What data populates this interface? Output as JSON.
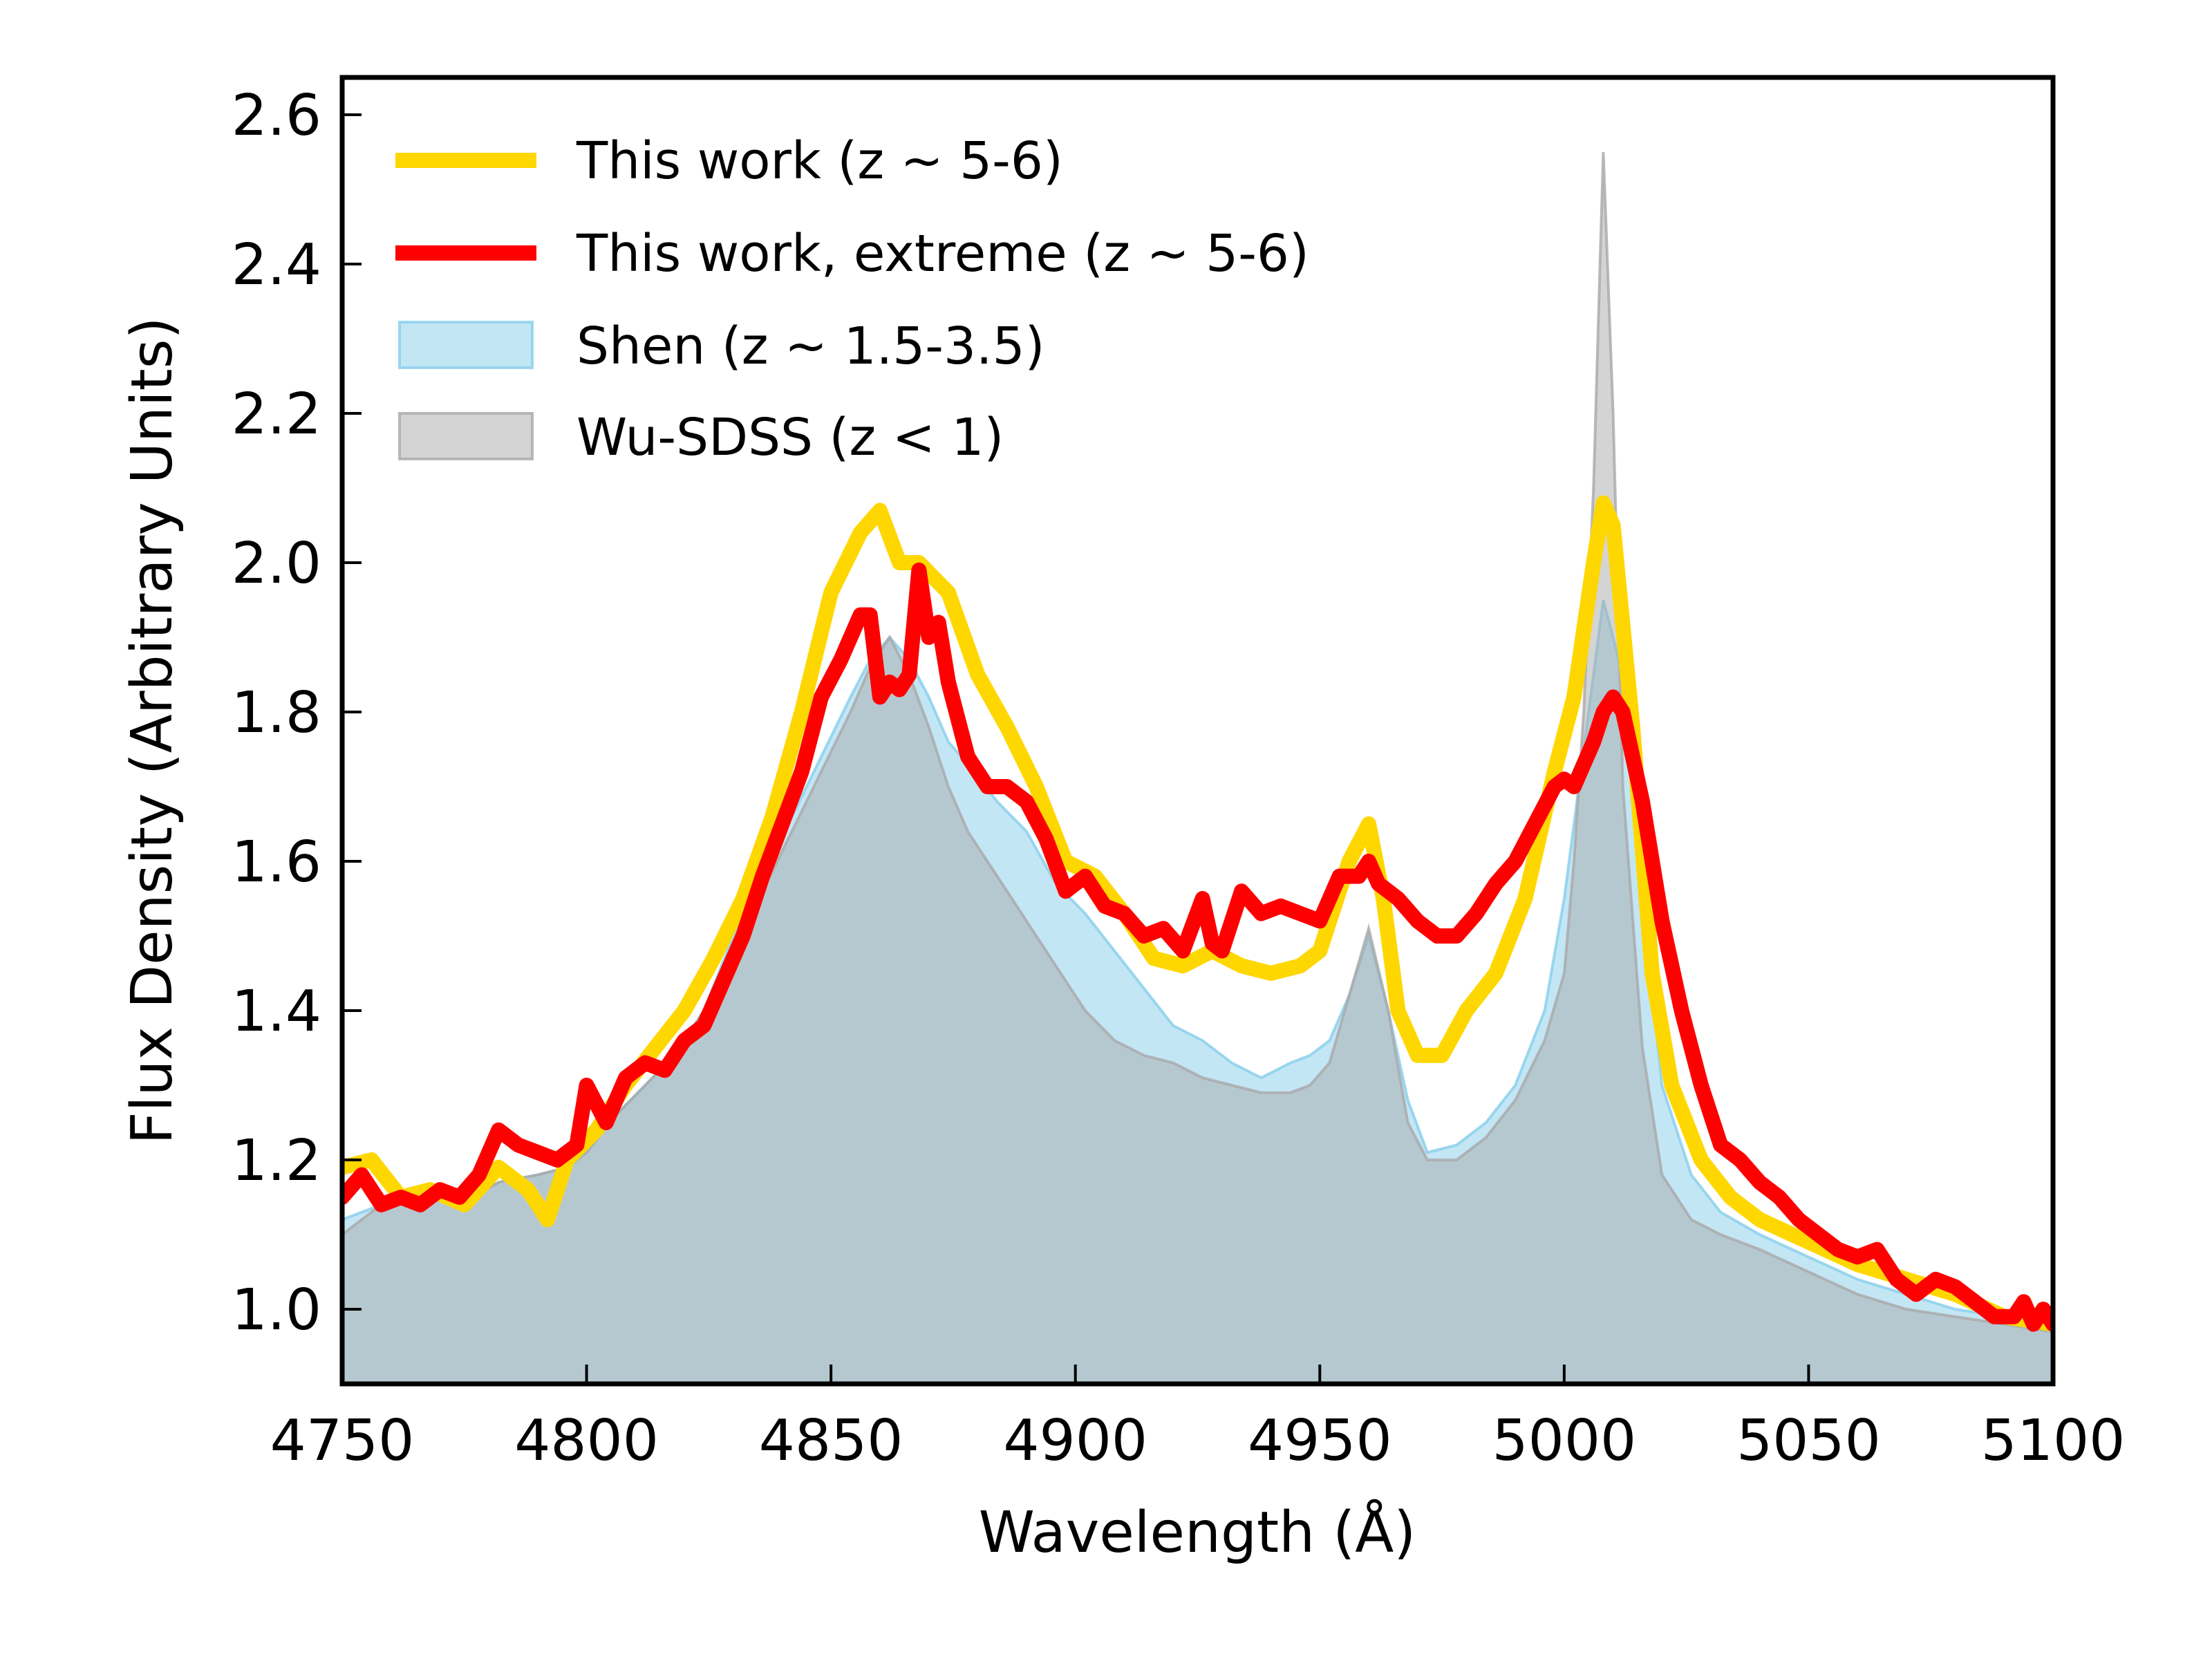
{
  "chart_data": {
    "type": "area",
    "title": "",
    "xlabel": "Wavelength (Å)",
    "ylabel": "Flux Density (Arbitrary Units)",
    "xlim": [
      4750,
      5100
    ],
    "ylim": [
      0.9,
      2.65
    ],
    "xticks": [
      4750,
      4800,
      4850,
      4900,
      4950,
      5000,
      5050,
      5100
    ],
    "yticks": [
      1.0,
      1.2,
      1.4,
      1.6,
      1.8,
      2.0,
      2.2,
      2.4,
      2.6
    ],
    "xtick_labels": [
      "4750",
      "4800",
      "4850",
      "4900",
      "4950",
      "5000",
      "5050",
      "5100"
    ],
    "ytick_labels": [
      "1.0",
      "1.2",
      "1.4",
      "1.6",
      "1.8",
      "2.0",
      "2.2",
      "2.4",
      "2.6"
    ],
    "grid": false,
    "legend_position": "top-left",
    "series": [
      {
        "name": "This work (z ~ 5-6)",
        "kind": "line",
        "color": "#FFD700",
        "x": [
          4750,
          4756,
          4762,
          4768,
          4775,
          4782,
          4788,
          4792,
          4796,
          4802,
          4808,
          4814,
          4820,
          4826,
          4832,
          4838,
          4844,
          4850,
          4856,
          4860,
          4864,
          4868,
          4874,
          4880,
          4886,
          4892,
          4898,
          4904,
          4910,
          4916,
          4922,
          4928,
          4934,
          4940,
          4946,
          4950,
          4956,
          4960,
          4963,
          4966,
          4970,
          4975,
          4980,
          4986,
          4992,
          4998,
          5002,
          5006,
          5008,
          5010,
          5014,
          5018,
          5022,
          5028,
          5034,
          5040,
          5050,
          5060,
          5070,
          5080,
          5090,
          5100
        ],
        "y": [
          1.19,
          1.2,
          1.15,
          1.16,
          1.14,
          1.19,
          1.16,
          1.12,
          1.2,
          1.24,
          1.3,
          1.35,
          1.4,
          1.47,
          1.55,
          1.66,
          1.8,
          1.96,
          2.04,
          2.07,
          2.0,
          2.0,
          1.96,
          1.85,
          1.78,
          1.7,
          1.6,
          1.58,
          1.53,
          1.47,
          1.46,
          1.48,
          1.46,
          1.45,
          1.46,
          1.48,
          1.6,
          1.65,
          1.55,
          1.4,
          1.34,
          1.34,
          1.4,
          1.45,
          1.55,
          1.72,
          1.82,
          2.0,
          2.08,
          2.05,
          1.78,
          1.45,
          1.3,
          1.2,
          1.15,
          1.12,
          1.09,
          1.06,
          1.04,
          1.02,
          0.99,
          0.98
        ]
      },
      {
        "name": "This work, extreme (z ~ 5-6)",
        "kind": "line",
        "color": "#FF0000",
        "x": [
          4750,
          4754,
          4758,
          4762,
          4766,
          4770,
          4774,
          4778,
          4782,
          4786,
          4790,
          4794,
          4798,
          4800,
          4804,
          4808,
          4812,
          4816,
          4820,
          4824,
          4828,
          4832,
          4836,
          4840,
          4844,
          4848,
          4852,
          4856,
          4858,
          4860,
          4862,
          4864,
          4866,
          4868,
          4870,
          4872,
          4874,
          4878,
          4882,
          4886,
          4890,
          4894,
          4898,
          4902,
          4906,
          4910,
          4914,
          4918,
          4922,
          4926,
          4928,
          4930,
          4934,
          4938,
          4942,
          4946,
          4950,
          4954,
          4958,
          4960,
          4962,
          4966,
          4970,
          4974,
          4978,
          4982,
          4986,
          4990,
          4994,
          4998,
          5000,
          5002,
          5006,
          5008,
          5010,
          5012,
          5016,
          5020,
          5024,
          5028,
          5032,
          5036,
          5040,
          5044,
          5048,
          5052,
          5056,
          5060,
          5064,
          5068,
          5072,
          5076,
          5080,
          5084,
          5088,
          5092,
          5094,
          5096,
          5098,
          5100
        ],
        "y": [
          1.15,
          1.18,
          1.14,
          1.15,
          1.14,
          1.16,
          1.15,
          1.18,
          1.24,
          1.22,
          1.21,
          1.2,
          1.22,
          1.3,
          1.25,
          1.31,
          1.33,
          1.32,
          1.36,
          1.38,
          1.44,
          1.5,
          1.58,
          1.65,
          1.72,
          1.82,
          1.87,
          1.93,
          1.93,
          1.82,
          1.84,
          1.83,
          1.85,
          1.99,
          1.9,
          1.92,
          1.84,
          1.74,
          1.7,
          1.7,
          1.68,
          1.63,
          1.56,
          1.58,
          1.54,
          1.53,
          1.5,
          1.51,
          1.48,
          1.55,
          1.49,
          1.48,
          1.56,
          1.53,
          1.54,
          1.53,
          1.52,
          1.58,
          1.58,
          1.6,
          1.57,
          1.55,
          1.52,
          1.5,
          1.5,
          1.53,
          1.57,
          1.6,
          1.65,
          1.7,
          1.71,
          1.7,
          1.76,
          1.8,
          1.82,
          1.8,
          1.68,
          1.52,
          1.4,
          1.3,
          1.22,
          1.2,
          1.17,
          1.15,
          1.12,
          1.1,
          1.08,
          1.07,
          1.08,
          1.04,
          1.02,
          1.04,
          1.03,
          1.01,
          0.99,
          0.99,
          1.01,
          0.98,
          1.0,
          0.98
        ]
      },
      {
        "name": "Shen (z ~ 1.5-3.5)",
        "kind": "area",
        "color": "#87CEEB",
        "x": [
          4750,
          4758,
          4766,
          4774,
          4782,
          4790,
          4796,
          4800,
          4806,
          4812,
          4818,
          4824,
          4830,
          4836,
          4842,
          4848,
          4854,
          4858,
          4862,
          4866,
          4870,
          4874,
          4878,
          4884,
          4890,
          4896,
          4902,
          4908,
          4914,
          4920,
          4926,
          4932,
          4938,
          4944,
          4948,
          4952,
          4956,
          4960,
          4964,
          4968,
          4972,
          4978,
          4984,
          4990,
          4996,
          5000,
          5004,
          5008,
          5012,
          5016,
          5020,
          5026,
          5032,
          5040,
          5050,
          5060,
          5070,
          5080,
          5090,
          5100
        ],
        "y": [
          1.12,
          1.14,
          1.15,
          1.14,
          1.17,
          1.18,
          1.19,
          1.21,
          1.26,
          1.3,
          1.34,
          1.4,
          1.5,
          1.58,
          1.66,
          1.74,
          1.82,
          1.87,
          1.9,
          1.87,
          1.82,
          1.76,
          1.73,
          1.68,
          1.64,
          1.57,
          1.53,
          1.48,
          1.43,
          1.38,
          1.36,
          1.33,
          1.31,
          1.33,
          1.34,
          1.36,
          1.42,
          1.5,
          1.4,
          1.28,
          1.21,
          1.22,
          1.25,
          1.3,
          1.4,
          1.55,
          1.75,
          1.95,
          1.85,
          1.55,
          1.3,
          1.18,
          1.13,
          1.1,
          1.07,
          1.04,
          1.02,
          1.0,
          0.99,
          0.98
        ]
      },
      {
        "name": "Wu-SDSS (z < 1)",
        "kind": "area",
        "color": "#A9A9A9",
        "x": [
          4750,
          4758,
          4766,
          4774,
          4782,
          4790,
          4796,
          4800,
          4806,
          4812,
          4818,
          4824,
          4830,
          4836,
          4842,
          4848,
          4854,
          4858,
          4862,
          4866,
          4870,
          4874,
          4878,
          4884,
          4890,
          4896,
          4902,
          4908,
          4914,
          4920,
          4926,
          4932,
          4938,
          4944,
          4948,
          4952,
          4956,
          4960,
          4964,
          4968,
          4972,
          4978,
          4984,
          4990,
          4996,
          5000,
          5002,
          5004,
          5006,
          5008,
          5010,
          5012,
          5016,
          5020,
          5026,
          5032,
          5040,
          5050,
          5060,
          5070,
          5080,
          5090,
          5100
        ],
        "y": [
          1.1,
          1.14,
          1.15,
          1.14,
          1.17,
          1.18,
          1.19,
          1.21,
          1.26,
          1.3,
          1.34,
          1.4,
          1.48,
          1.56,
          1.64,
          1.72,
          1.8,
          1.86,
          1.9,
          1.85,
          1.78,
          1.7,
          1.64,
          1.58,
          1.52,
          1.46,
          1.4,
          1.36,
          1.34,
          1.33,
          1.31,
          1.3,
          1.29,
          1.29,
          1.3,
          1.33,
          1.42,
          1.51,
          1.4,
          1.25,
          1.2,
          1.2,
          1.23,
          1.28,
          1.36,
          1.45,
          1.6,
          1.8,
          2.1,
          2.55,
          2.2,
          1.7,
          1.35,
          1.18,
          1.12,
          1.1,
          1.08,
          1.05,
          1.02,
          1.0,
          0.99,
          0.98,
          0.97
        ]
      }
    ]
  }
}
